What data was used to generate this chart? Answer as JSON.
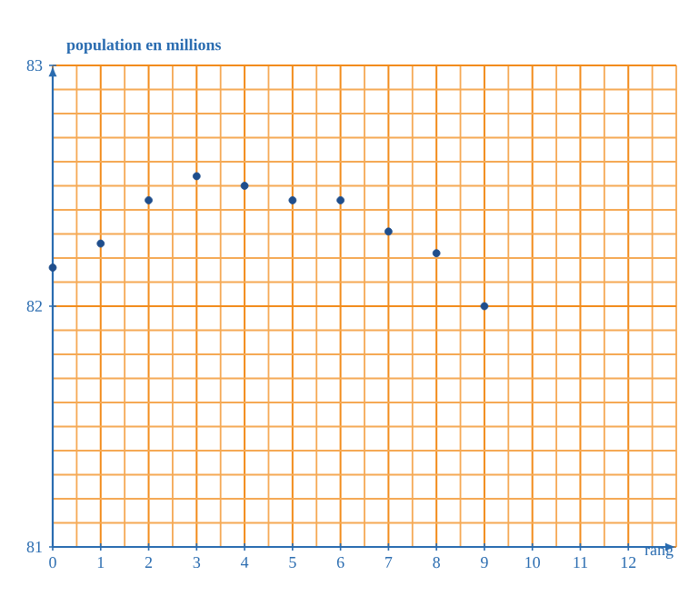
{
  "chart_data": {
    "type": "scatter",
    "xlabel": "rang",
    "ylabel": "population en millions",
    "x": [
      0,
      1,
      2,
      3,
      4,
      5,
      6,
      7,
      8,
      9
    ],
    "values": [
      82.16,
      82.26,
      82.44,
      82.54,
      82.5,
      82.44,
      82.44,
      82.31,
      82.22,
      82.0
    ],
    "color": "#1f4e8c",
    "xlim": [
      0,
      13
    ],
    "ylim": [
      81,
      83
    ],
    "xticks": [
      0,
      {
        "value": 0.5,
        "label": null
      },
      1,
      {
        "value": 1.5,
        "label": null
      },
      2,
      {
        "value": 2.5,
        "label": null
      },
      3,
      {
        "value": 3.5,
        "label": null
      },
      4,
      {
        "value": 4.5,
        "label": null
      },
      5,
      {
        "value": 5.5,
        "label": null
      },
      6,
      {
        "value": 6.5,
        "label": null
      },
      7,
      {
        "value": 7.5,
        "label": null
      },
      8,
      {
        "value": 8.5,
        "label": null
      },
      9,
      {
        "value": 9.5,
        "label": null
      },
      10,
      {
        "value": 10.5,
        "label": null
      },
      11,
      {
        "value": 11.5,
        "label": null
      },
      12,
      {
        "value": 12.5,
        "label": null
      },
      {
        "value": 13,
        "label": null
      }
    ],
    "yticks": [
      81,
      {
        "value": 81.1,
        "label": null
      },
      {
        "value": 81.2,
        "label": null
      },
      {
        "value": 81.3,
        "label": null
      },
      {
        "value": 81.4,
        "label": null
      },
      {
        "value": 81.5,
        "label": null
      },
      {
        "value": 81.6,
        "label": null
      },
      {
        "value": 81.7,
        "label": null
      },
      {
        "value": 81.8,
        "label": null
      },
      {
        "value": 81.9,
        "label": null
      },
      82,
      {
        "value": 82.1,
        "label": null
      },
      {
        "value": 82.2,
        "label": null
      },
      {
        "value": 82.3,
        "label": null
      },
      {
        "value": 82.4,
        "label": null
      },
      {
        "value": 82.5,
        "label": null
      },
      {
        "value": 82.6,
        "label": null
      },
      {
        "value": 82.7,
        "label": null
      },
      {
        "value": 82.8,
        "label": null
      },
      {
        "value": 82.9,
        "label": null
      },
      83
    ],
    "grid": true,
    "marker": "circle"
  }
}
